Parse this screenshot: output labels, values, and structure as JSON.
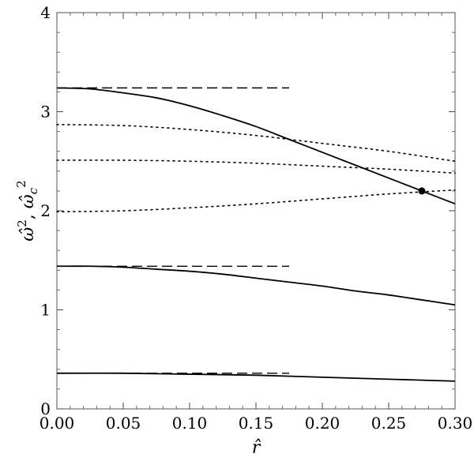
{
  "chart_data": {
    "type": "line",
    "xlabel": "r̂",
    "ylabel_main": "ω̂",
    "ylabel_sup1": "2",
    "ylabel_sep": ", ",
    "ylabel_second": "ω̂",
    "ylabel_sub": "c",
    "ylabel_sup2": "2",
    "xlim": [
      0.0,
      0.3
    ],
    "ylim": [
      0,
      4
    ],
    "x_ticks": [
      {
        "value": 0.0,
        "label": "0.00"
      },
      {
        "value": 0.05,
        "label": "0.05"
      },
      {
        "value": 0.1,
        "label": "0.10"
      },
      {
        "value": 0.15,
        "label": "0.15"
      },
      {
        "value": 0.2,
        "label": "0.20"
      },
      {
        "value": 0.25,
        "label": "0.25"
      },
      {
        "value": 0.3,
        "label": "0.30"
      }
    ],
    "y_ticks": [
      {
        "value": 0,
        "label": "0"
      },
      {
        "value": 1,
        "label": "1"
      },
      {
        "value": 2,
        "label": "2"
      },
      {
        "value": 3,
        "label": "3"
      },
      {
        "value": 4,
        "label": "4"
      }
    ],
    "x_minor_step": 0.01,
    "y_minor_step": 0.2,
    "grid": false,
    "series": [
      {
        "style": "solid",
        "x": [
          0.0,
          0.025,
          0.05,
          0.075,
          0.1,
          0.125,
          0.15,
          0.175,
          0.2,
          0.225,
          0.25,
          0.275,
          0.3
        ],
        "y": [
          3.24,
          3.23,
          3.19,
          3.14,
          3.06,
          2.96,
          2.85,
          2.72,
          2.59,
          2.46,
          2.33,
          2.2,
          2.07
        ]
      },
      {
        "style": "solid",
        "x": [
          0.0,
          0.025,
          0.05,
          0.075,
          0.1,
          0.125,
          0.15,
          0.175,
          0.2,
          0.225,
          0.25,
          0.275,
          0.3
        ],
        "y": [
          1.44,
          1.44,
          1.43,
          1.41,
          1.39,
          1.36,
          1.32,
          1.28,
          1.24,
          1.19,
          1.15,
          1.1,
          1.05
        ]
      },
      {
        "style": "solid",
        "x": [
          0.0,
          0.05,
          0.1,
          0.15,
          0.2,
          0.25,
          0.3
        ],
        "y": [
          0.36,
          0.36,
          0.35,
          0.34,
          0.32,
          0.3,
          0.28
        ]
      },
      {
        "style": "dashed",
        "x": [
          0.0,
          0.175
        ],
        "y": [
          3.24,
          3.24
        ]
      },
      {
        "style": "dashed",
        "x": [
          0.0,
          0.175
        ],
        "y": [
          1.44,
          1.44
        ]
      },
      {
        "style": "dashed",
        "x": [
          0.0,
          0.175
        ],
        "y": [
          0.36,
          0.36
        ]
      },
      {
        "style": "dotted",
        "x": [
          0.0,
          0.05,
          0.1,
          0.15,
          0.2,
          0.25,
          0.3
        ],
        "y": [
          2.87,
          2.86,
          2.82,
          2.76,
          2.68,
          2.6,
          2.5
        ]
      },
      {
        "style": "dotted",
        "x": [
          0.0,
          0.05,
          0.1,
          0.15,
          0.2,
          0.25,
          0.3
        ],
        "y": [
          2.51,
          2.51,
          2.5,
          2.48,
          2.45,
          2.42,
          2.38
        ]
      },
      {
        "style": "dotted",
        "x": [
          0.0,
          0.05,
          0.1,
          0.15,
          0.2,
          0.25,
          0.3
        ],
        "y": [
          1.99,
          2.0,
          2.03,
          2.07,
          2.12,
          2.17,
          2.21
        ]
      }
    ],
    "points": [
      {
        "x": 0.275,
        "y": 2.2
      }
    ]
  }
}
